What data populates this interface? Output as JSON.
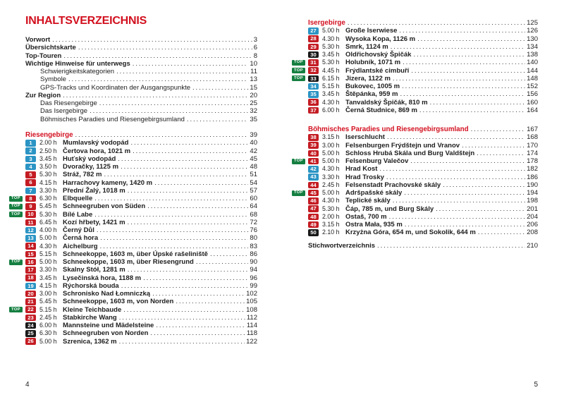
{
  "colors": {
    "heading_red": "#d2101f",
    "badge_red": "#c41c23",
    "badge_blue": "#2b94c4",
    "badge_black": "#191919",
    "top_green": "#157f41"
  },
  "toc": {
    "title": "INHALTSVERZEICHNIS",
    "top_label": "TOP",
    "footer": {
      "left_page_number": "4",
      "right_page_number": "5"
    },
    "front_matter": [
      {
        "label": "Vorwort",
        "page": "3",
        "style": "bold"
      },
      {
        "label": "Übersichtskarte",
        "page": "6",
        "style": "bold"
      },
      {
        "label": "Top-Touren",
        "page": "8",
        "style": "bold"
      },
      {
        "label": "Wichtige Hinweise für unterwegs",
        "page": "10",
        "style": "bold"
      },
      {
        "label": "Schwierigkeitskategorien",
        "page": "11",
        "style": "indent"
      },
      {
        "label": "Symbole",
        "page": "13",
        "style": "indent"
      },
      {
        "label": "GPS-Tracks und Koordinaten der Ausgangspunkte",
        "page": "15",
        "style": "indent"
      },
      {
        "label": "Zur Region",
        "page": "20",
        "style": "bold"
      },
      {
        "label": "Das Riesengebirge",
        "page": "25",
        "style": "indent"
      },
      {
        "label": "Das Isergebirge",
        "page": "32",
        "style": "indent"
      },
      {
        "label": "Böhmisches Paradies und Riesengebirgsumland",
        "page": "35",
        "style": "indent"
      }
    ],
    "sections": [
      {
        "heading": "Riesengebirge",
        "heading_page": "39",
        "entries": [
          {
            "num": "1",
            "badge": "blue",
            "top": false,
            "time": "2.00 h",
            "title": "Mumlavský vodopád",
            "page": "40"
          },
          {
            "num": "2",
            "badge": "blue",
            "top": false,
            "time": "2.50 h",
            "title": "Čertova hora, 1021 m",
            "page": "42"
          },
          {
            "num": "3",
            "badge": "blue",
            "top": false,
            "time": "3.45 h",
            "title": "Huťský vodopád",
            "page": "45"
          },
          {
            "num": "4",
            "badge": "blue",
            "top": false,
            "time": "3.50 h",
            "title": "Dvoračky, 1125 m",
            "page": "48"
          },
          {
            "num": "5",
            "badge": "red",
            "top": false,
            "time": "5.30 h",
            "title": "Stráž, 782 m",
            "page": "51"
          },
          {
            "num": "6",
            "badge": "red",
            "top": false,
            "time": "4.15 h",
            "title": "Harrachovy kameny, 1420 m",
            "page": "54"
          },
          {
            "num": "7",
            "badge": "blue",
            "top": false,
            "time": "3.30 h",
            "title": "Přední Žalý, 1018 m",
            "page": "57"
          },
          {
            "num": "8",
            "badge": "red",
            "top": true,
            "time": "6.30 h",
            "title": "Elbquelle",
            "page": "60"
          },
          {
            "num": "9",
            "badge": "red",
            "top": true,
            "time": "5.45 h",
            "title": "Schneegruben von Süden",
            "page": "64"
          },
          {
            "num": "10",
            "badge": "red",
            "top": true,
            "time": "5.30 h",
            "title": "Bílé Labe",
            "page": "68"
          },
          {
            "num": "11",
            "badge": "red",
            "top": false,
            "time": "6.45 h",
            "title": "Kozí hřbety, 1421 m",
            "page": "72"
          },
          {
            "num": "12",
            "badge": "blue",
            "top": false,
            "time": "4.00 h",
            "title": "Černý Důl",
            "page": "76"
          },
          {
            "num": "13",
            "badge": "blue",
            "top": false,
            "time": "5.00 h",
            "title": "Černá hora",
            "page": "80"
          },
          {
            "num": "14",
            "badge": "red",
            "top": false,
            "time": "4.30 h",
            "title": "Aichelburg",
            "page": "83"
          },
          {
            "num": "15",
            "badge": "red",
            "top": false,
            "time": "5.15 h",
            "title": "Schneekoppe, 1603 m, über Úpské rašeliniště",
            "page": "86"
          },
          {
            "num": "16",
            "badge": "red",
            "top": true,
            "time": "5.00 h",
            "title": "Schneekoppe, 1603 m, über Riesengrund",
            "page": "90"
          },
          {
            "num": "17",
            "badge": "red",
            "top": false,
            "time": "3.30 h",
            "title": "Skalny Stół, 1281 m",
            "page": "94"
          },
          {
            "num": "18",
            "badge": "red",
            "top": false,
            "time": "3.45 h",
            "title": "Lysečinská hora, 1188 m",
            "page": "96"
          },
          {
            "num": "19",
            "badge": "blue",
            "top": false,
            "time": "4.15 h",
            "title": "Rýchorská bouda",
            "page": "99"
          },
          {
            "num": "20",
            "badge": "red",
            "top": false,
            "time": "3.00 h",
            "title": "Schronisko Nad Łomniczką",
            "page": "102"
          },
          {
            "num": "21",
            "badge": "red",
            "top": false,
            "time": "5.45 h",
            "title": "Schneekoppe, 1603 m, von Norden",
            "page": "105"
          },
          {
            "num": "22",
            "badge": "red",
            "top": true,
            "time": "5.15 h",
            "title": "Kleine Teichbaude",
            "page": "108"
          },
          {
            "num": "23",
            "badge": "red",
            "top": false,
            "time": "2.45 h",
            "title": "Stabkirche Wang",
            "page": "112"
          },
          {
            "num": "24",
            "badge": "black",
            "top": false,
            "time": "6.00 h",
            "title": "Mannsteine und Mädelsteine",
            "page": "114"
          },
          {
            "num": "25",
            "badge": "black",
            "top": false,
            "time": "6.30 h",
            "title": "Schneegruben von Norden",
            "page": "118"
          },
          {
            "num": "26",
            "badge": "red",
            "top": false,
            "time": "5.00 h",
            "title": "Szrenica, 1362 m",
            "page": "122"
          }
        ]
      },
      {
        "heading": "Isergebirge",
        "heading_page": "125",
        "entries": [
          {
            "num": "27",
            "badge": "blue",
            "top": false,
            "time": "5.00 h",
            "title": "Große Iserwiese",
            "page": "126"
          },
          {
            "num": "28",
            "badge": "red",
            "top": false,
            "time": "4.30 h",
            "title": "Wysoka Kopa, 1126 m",
            "page": "130"
          },
          {
            "num": "29",
            "badge": "red",
            "top": false,
            "time": "5.30 h",
            "title": "Smrk, 1124 m",
            "page": "134"
          },
          {
            "num": "30",
            "badge": "black",
            "top": false,
            "time": "3.45 h",
            "title": "Oldřichovský Špičák",
            "page": "138"
          },
          {
            "num": "31",
            "badge": "red",
            "top": true,
            "time": "5.30 h",
            "title": "Holubník, 1071 m",
            "page": "140"
          },
          {
            "num": "32",
            "badge": "red",
            "top": true,
            "time": "4.45 h",
            "title": "Frýdlantské cimbuří",
            "page": "144"
          },
          {
            "num": "33",
            "badge": "black",
            "top": true,
            "time": "6.15 h",
            "title": "Jizera, 1122 m",
            "page": "148"
          },
          {
            "num": "34",
            "badge": "blue",
            "top": false,
            "time": "5.15 h",
            "title": "Bukovec, 1005 m",
            "page": "152"
          },
          {
            "num": "35",
            "badge": "blue",
            "top": false,
            "time": "3.45 h",
            "title": "Štěpánka, 959 m",
            "page": "156"
          },
          {
            "num": "36",
            "badge": "red",
            "top": false,
            "time": "4.30 h",
            "title": "Tanvaldský Špičák, 810 m",
            "page": "160"
          },
          {
            "num": "37",
            "badge": "red",
            "top": false,
            "time": "6.00 h",
            "title": "Černá Studnice, 869 m",
            "page": "164"
          }
        ]
      },
      {
        "heading": "Böhmisches Paradies und Riesengebirgsumland",
        "heading_page": "167",
        "entries": [
          {
            "num": "38",
            "badge": "red",
            "top": false,
            "time": "3.15 h",
            "title": "Iserschlucht",
            "page": "168"
          },
          {
            "num": "39",
            "badge": "red",
            "top": false,
            "time": "3.00 h",
            "title": "Felsenburgen Frýdštejn und Vranov",
            "page": "170"
          },
          {
            "num": "40",
            "badge": "red",
            "top": false,
            "time": "5.00 h",
            "title": "Schloss Hrubá Skála und Burg Valdštejn",
            "page": "174"
          },
          {
            "num": "41",
            "badge": "red",
            "top": true,
            "time": "5.00 h",
            "title": "Felsenburg Valečov",
            "page": "178"
          },
          {
            "num": "42",
            "badge": "blue",
            "top": false,
            "time": "4.30 h",
            "title": "Hrad Kost",
            "page": "182"
          },
          {
            "num": "43",
            "badge": "blue",
            "top": false,
            "time": "3.30 h",
            "title": "Hrad Trosky",
            "page": "186"
          },
          {
            "num": "44",
            "badge": "red",
            "top": false,
            "time": "2.45 h",
            "title": "Felsenstadt Prachovské skály",
            "page": "190"
          },
          {
            "num": "45",
            "badge": "red",
            "top": true,
            "time": "5.00 h",
            "title": "Adršpašské skály",
            "page": "194"
          },
          {
            "num": "46",
            "badge": "red",
            "top": false,
            "time": "4.30 h",
            "title": "Teplické skály",
            "page": "198"
          },
          {
            "num": "47",
            "badge": "red",
            "top": false,
            "time": "5.30 h",
            "title": "Čáp, 785 m, und Burg Skály",
            "page": "201"
          },
          {
            "num": "48",
            "badge": "red",
            "top": false,
            "time": "2.00 h",
            "title": "Ostaš, 700 m",
            "page": "204"
          },
          {
            "num": "49",
            "badge": "red",
            "top": false,
            "time": "3.15 h",
            "title": "Ostra Mała, 935 m",
            "page": "206"
          },
          {
            "num": "50",
            "badge": "black",
            "top": false,
            "time": "2.10 h",
            "title": "Krzyżna Góra, 654 m, und Sokolik, 644 m",
            "page": "208"
          }
        ]
      }
    ],
    "index": {
      "label": "Stichwortverzeichnis",
      "page": "210"
    }
  }
}
